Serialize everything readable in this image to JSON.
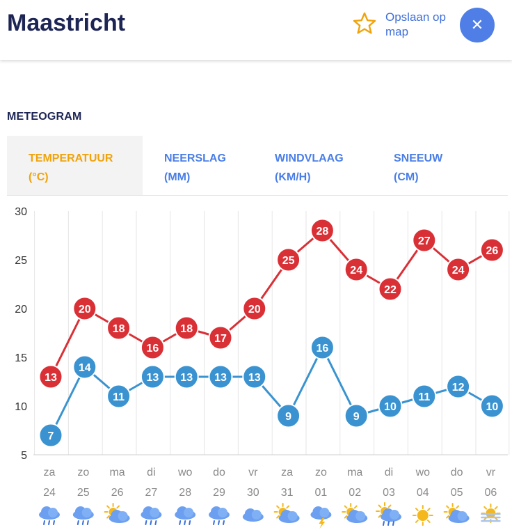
{
  "header": {
    "title": "Maastricht",
    "save_label": "Opslaan op map",
    "save_icon": "star-icon",
    "close_icon": "close-icon"
  },
  "meteogram": {
    "title": "METEOGRAM",
    "tabs": [
      {
        "line1": "TEMPERATUUR",
        "line2": "(°C)",
        "active": true
      },
      {
        "line1": "NEERSLAG",
        "line2": "(MM)",
        "active": false
      },
      {
        "line1": "WINDVLAAG",
        "line2": "(KM/H)",
        "active": false
      },
      {
        "line1": "SNEEUW",
        "line2": "(CM)",
        "active": false
      }
    ]
  },
  "colors": {
    "max_series": "#d93036",
    "min_series": "#3a93d0",
    "active_tab": "#f0a30a",
    "inactive_tab": "#4a7ee6"
  },
  "chart_data": {
    "type": "line",
    "ylim": [
      5,
      30
    ],
    "yticks": [
      30,
      25,
      20,
      15,
      10,
      5
    ],
    "grid": true,
    "categories": [
      {
        "day": "za",
        "date": "24",
        "icon": "rain-icon"
      },
      {
        "day": "zo",
        "date": "25",
        "icon": "rain-icon"
      },
      {
        "day": "ma",
        "date": "26",
        "icon": "sun-cloud-icon"
      },
      {
        "day": "di",
        "date": "27",
        "icon": "rain-icon"
      },
      {
        "day": "wo",
        "date": "28",
        "icon": "rain-icon"
      },
      {
        "day": "do",
        "date": "29",
        "icon": "rain-icon"
      },
      {
        "day": "vr",
        "date": "30",
        "icon": "cloud-icon"
      },
      {
        "day": "za",
        "date": "31",
        "icon": "sun-cloud-icon"
      },
      {
        "day": "zo",
        "date": "01",
        "icon": "thunderstorm-icon"
      },
      {
        "day": "ma",
        "date": "02",
        "icon": "sun-cloud-icon"
      },
      {
        "day": "di",
        "date": "03",
        "icon": "sun-rain-icon"
      },
      {
        "day": "wo",
        "date": "04",
        "icon": "sun-icon"
      },
      {
        "day": "do",
        "date": "05",
        "icon": "sun-cloud-icon"
      },
      {
        "day": "vr",
        "date": "06",
        "icon": "haze-icon"
      }
    ],
    "series": [
      {
        "key": "max",
        "values": [
          13,
          20,
          18,
          16,
          18,
          17,
          20,
          25,
          28,
          24,
          22,
          27,
          24,
          26
        ]
      },
      {
        "key": "min",
        "values": [
          7,
          14,
          11,
          13,
          13,
          13,
          13,
          9,
          16,
          9,
          10,
          11,
          12,
          10
        ]
      }
    ]
  }
}
